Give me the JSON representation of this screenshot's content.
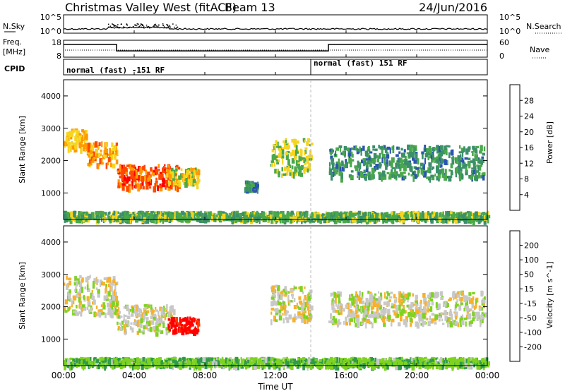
{
  "header": {
    "site": "Christmas Valley West (fitACF)",
    "beam": "Beam 13",
    "date": "24/Jun/2016"
  },
  "top_panels": {
    "nsky_label": "N.Sky",
    "nsky_ticks": [
      "10^5",
      "10^0"
    ],
    "nsearch_label": "N.Search",
    "nsearch_ticks": [
      "10^5",
      "10^0"
    ],
    "freq_label": "Freq.",
    "freq_unit": "[MHz]",
    "freq_ticks": [
      "18",
      "8"
    ],
    "nave_label": "Nave",
    "nave_ticks": [
      "60",
      "0"
    ],
    "cpid_label": "CPID",
    "cpid_segments": [
      {
        "label": "normal (fast) -151 RF",
        "start_h": 0,
        "end_h": 14
      },
      {
        "label": "normal (fast) 151 RF",
        "start_h": 14,
        "end_h": 24
      }
    ],
    "freq_steps": [
      {
        "start_h": 0,
        "end_h": 3,
        "mhz": 15.5
      },
      {
        "start_h": 3,
        "end_h": 15,
        "mhz": 11.7
      },
      {
        "start_h": 15,
        "end_h": 24,
        "mhz": 15.5
      }
    ]
  },
  "chart_data": [
    {
      "type": "heatmap",
      "title": "Power",
      "ylabel": "Slant Range [km]",
      "xlabel": "Time UT",
      "xlim_hours": [
        0,
        24
      ],
      "ylim": [
        180,
        4500
      ],
      "yticks": [
        "1000",
        "2000",
        "3000",
        "4000"
      ],
      "colorbar_label": "Power [dB]",
      "colorbar_ticks": [
        "28",
        "24",
        "20",
        "16",
        "12",
        "8",
        "4"
      ],
      "colors": [
        "#0026ff",
        "#2a55b0",
        "#3b8f6a",
        "#4aa84a",
        "#f6d51f",
        "#ff9900",
        "#ff4800",
        "#ff0000"
      ],
      "echo_regions": [
        {
          "t0": 0.0,
          "t1": 1.3,
          "r0": 2400,
          "r1": 3000,
          "level": 20
        },
        {
          "t0": 1.3,
          "t1": 3.0,
          "r0": 1900,
          "r1": 2600,
          "level": 22
        },
        {
          "t0": 3.0,
          "t1": 6.5,
          "r0": 1200,
          "r1": 1900,
          "level": 26
        },
        {
          "t0": 5.8,
          "t1": 7.6,
          "r0": 1300,
          "r1": 1800,
          "level": 18
        },
        {
          "t0": 10.2,
          "t1": 11.0,
          "r0": 1150,
          "r1": 1400,
          "level": 10
        },
        {
          "t0": 11.7,
          "t1": 14.0,
          "r0": 1600,
          "r1": 2700,
          "level": 16
        },
        {
          "t0": 15.0,
          "t1": 23.8,
          "r0": 1500,
          "r1": 2500,
          "level": 11
        },
        {
          "t0": 0.0,
          "t1": 24.0,
          "r0": 200,
          "r1": 450,
          "level": 14
        }
      ]
    },
    {
      "type": "heatmap",
      "title": "Velocity",
      "ylabel": "Slant Range [km]",
      "xlabel": "Time UT",
      "xlim_hours": [
        0,
        24
      ],
      "ylim": [
        180,
        4500
      ],
      "yticks": [
        "1000",
        "2000",
        "3000",
        "4000"
      ],
      "colorbar_label": "Velocity [m s^-1]",
      "colorbar_ticks": [
        "200",
        "100",
        "50",
        "15",
        "-15",
        "-50",
        "-100",
        "-200"
      ],
      "colors": [
        "#1a2fd0",
        "#2f8060",
        "#2f9a4a",
        "#7ed321",
        "#c8c8c8",
        "#f7b12c",
        "#ff8800",
        "#ff3a00",
        "#ff0000"
      ],
      "echo_regions": [
        {
          "t0": 0.0,
          "t1": 3.0,
          "r0": 1800,
          "r1": 3000,
          "level": 0
        },
        {
          "t0": 3.0,
          "t1": 6.2,
          "r0": 1200,
          "r1": 2100,
          "level": 0
        },
        {
          "t0": 5.9,
          "t1": 7.6,
          "r0": 1250,
          "r1": 1700,
          "level": -220
        },
        {
          "t0": 11.7,
          "t1": 14.0,
          "r0": 1600,
          "r1": 2700,
          "level": 0
        },
        {
          "t0": 15.0,
          "t1": 23.8,
          "r0": 1500,
          "r1": 2500,
          "level": 0
        },
        {
          "t0": 0.0,
          "t1": 24.0,
          "r0": 200,
          "r1": 450,
          "level": 40
        }
      ]
    }
  ],
  "x_axis": {
    "ticks": [
      "00:00",
      "04:00",
      "08:00",
      "12:00",
      "16:00",
      "20:00",
      "00:00"
    ],
    "label": "Time UT"
  }
}
